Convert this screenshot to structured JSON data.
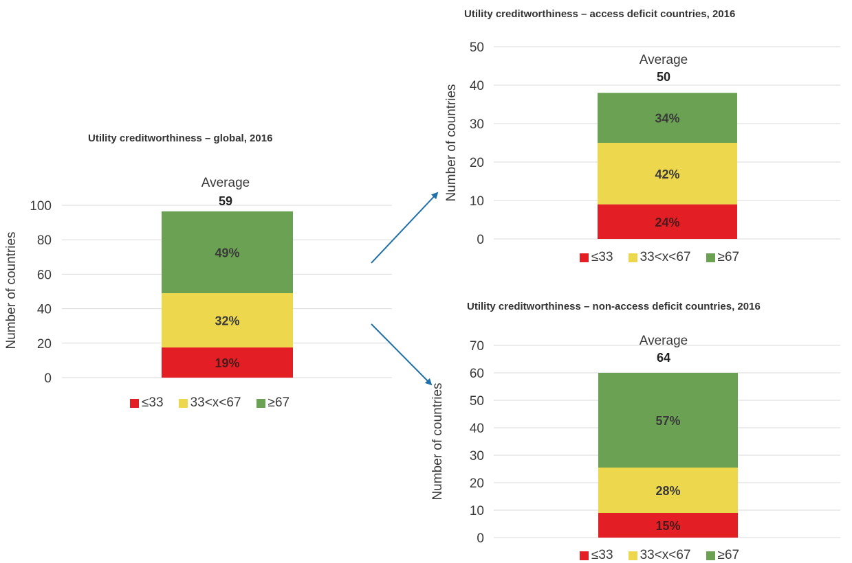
{
  "colors": {
    "red": "#E31E24",
    "yellow": "#EDD74C",
    "green": "#6AA152",
    "arrow": "#1F6FA8"
  },
  "chart_data": [
    {
      "type": "bar",
      "title": "Utility creditworthiness – global, 2016",
      "ylabel": "Number of countries",
      "ylim": [
        0,
        100
      ],
      "yticks": [
        0,
        20,
        40,
        60,
        80,
        100
      ],
      "average_label": "Average",
      "average_value": "59",
      "series": [
        {
          "name": "≤33",
          "value": 17.5,
          "label": "19%"
        },
        {
          "name": "33<x<67",
          "value": 31.5,
          "label": "32%"
        },
        {
          "name": "≥67",
          "value": 47.5,
          "label": "49%"
        }
      ]
    },
    {
      "type": "bar",
      "title": "Utility creditworthiness – access deficit countries, 2016",
      "ylabel": "Number of countries",
      "ylim": [
        0,
        50
      ],
      "yticks": [
        0,
        10,
        20,
        30,
        40,
        50
      ],
      "average_label": "Average",
      "average_value": "50",
      "series": [
        {
          "name": "≤33",
          "value": 9,
          "label": "24%"
        },
        {
          "name": "33<x<67",
          "value": 16,
          "label": "42%"
        },
        {
          "name": "≥67",
          "value": 13,
          "label": "34%"
        }
      ]
    },
    {
      "type": "bar",
      "title": "Utility creditworthiness – non-access deficit countries, 2016",
      "ylabel": "Number of countries",
      "ylim": [
        0,
        70
      ],
      "yticks": [
        0,
        10,
        20,
        30,
        40,
        50,
        60,
        70
      ],
      "average_label": "Average",
      "average_value": "64",
      "series": [
        {
          "name": "≤33",
          "value": 9,
          "label": "15%"
        },
        {
          "name": "33<x<67",
          "value": 16.5,
          "label": "28%"
        },
        {
          "name": "≥67",
          "value": 34.5,
          "label": "57%"
        }
      ]
    }
  ]
}
